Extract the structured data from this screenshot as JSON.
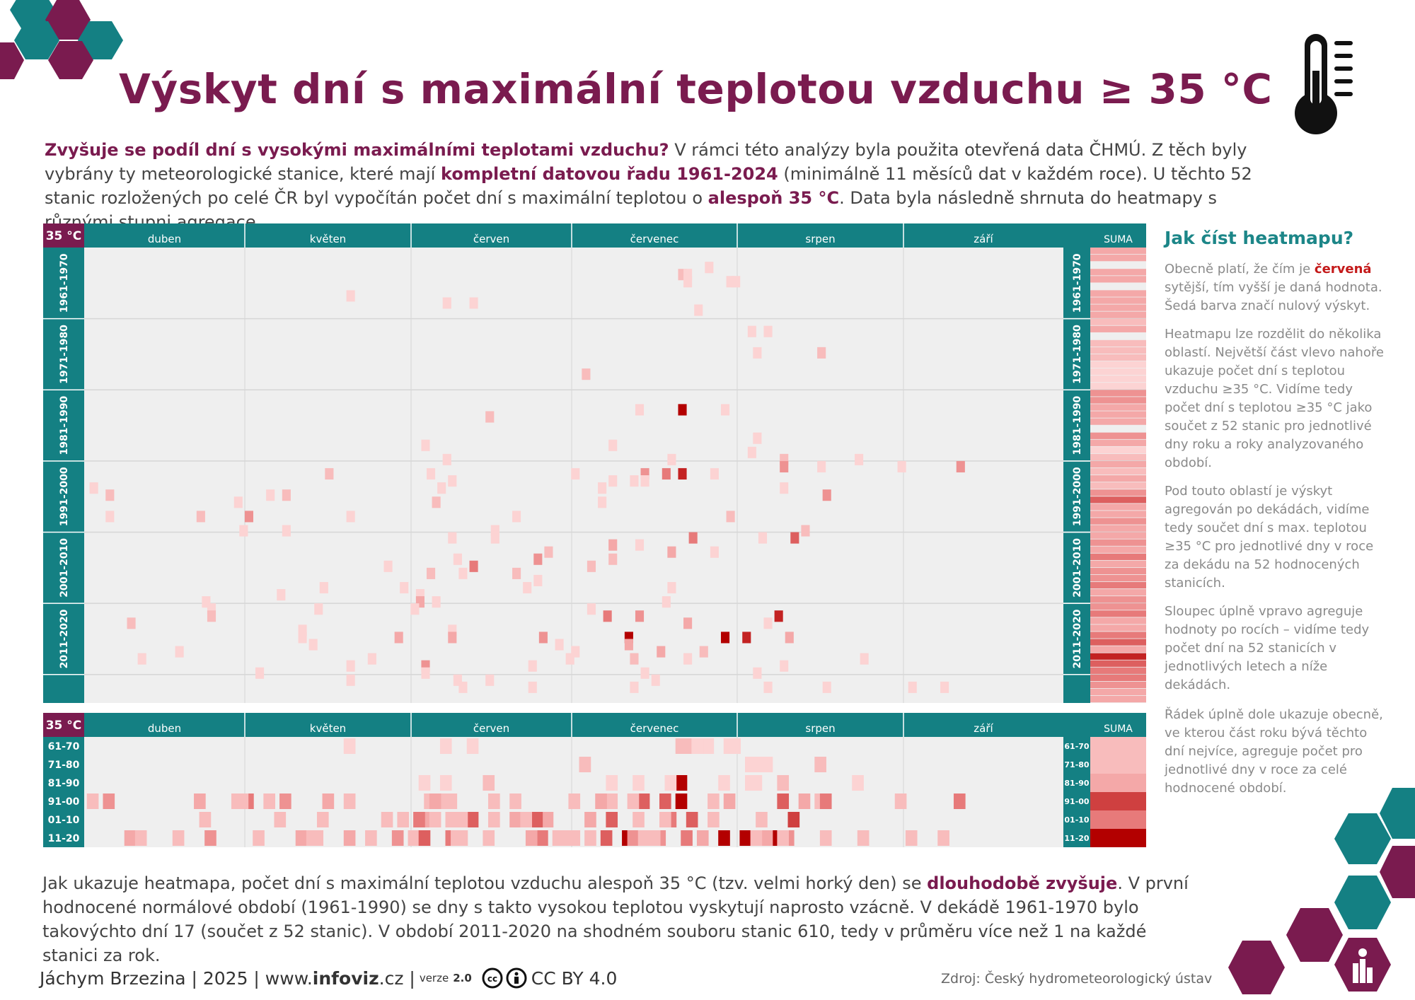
{
  "title": "Výskyt dní s maximální teplotou vzduchu ≥ 35 °C",
  "intro": {
    "q": "Zvyšuje se podíl dní s vysokými maximálními teplotami vzduchu?",
    "t1": " V rámci této analýzy byla použita otevřená data ČHMÚ. Z těch byly vybrány ty meteorologické stanice, které mají ",
    "h1": "kompletní datovou řadu 1961-2024",
    "t2": " (minimálně 11 měsíců dat v každém roce). U těchto 52 stanic rozložených po celé ČR byl vypočítán počet dní s maximální teplotou o ",
    "h2": "alespoň 35 °C",
    "t3": ". Data byla následně shrnuta do heatmapy s různými stupni agregace."
  },
  "side": {
    "title": "Jak číst heatmapu?",
    "p1a": "Obecně platí, že čím je ",
    "p1b": "červená",
    "p1c": " sytější, tím vyšší je daná hodnota. Šedá barva značí nulový výskyt.",
    "p2": "Heatmapu lze rozdělit do několika oblastí. Největší část vlevo nahoře ukazuje počet dní s teplotou vzduchu ≥35 °C. Vidíme tedy počet dní s teplotou ≥35 °C jako součet z 52 stanic pro jednotlivé dny roku a roky analyzovaného období.",
    "p3": "Pod touto oblastí je výskyt agregován po dekádách, vidíme tedy součet dní s max. teplotou ≥35 °C pro jednotlivé dny v roce za dekádu na 52 hodnocených stanicích.",
    "p4": "Sloupec úplně vpravo agreguje hodnoty po rocích – vidíme tedy počet dní na 52 stanicích v jednotlivých letech a níže dekádách.",
    "p5": "Řádek úplně dole ukazuje obecně, ve kterou část roku bývá těchto dní nejvíce, agreguje počet pro jednotlivé dny v roce za celé hodnocené období."
  },
  "outro": {
    "t1": "Jak ukazuje heatmapa, počet dní s maximální teplotou vzduchu alespoň 35 °C (tzv. velmi horký den) se ",
    "h1": "dlouhodobě zvyšuje",
    "t2": ". V první hodnocené normálové období (1961-1990) se dny s takto vysokou teplotou vyskytují naprosto vzácně. V dekádě 1961-1970 bylo takovýchto dní 17 (součet z 52 stanic). V období 2011-2020 na shodném souboru stanic 610, tedy v průměru více než 1 na každé stanici za rok."
  },
  "footer": {
    "author": "Jáchym Brzezina | 2025 | www.",
    "site_bold": "infoviz",
    "site_tail": ".cz |",
    "version_label": "verze",
    "version": "2.0",
    "license": "CC BY 4.0",
    "source": "Zdroj: Český hydrometeorologický ústav"
  },
  "colors": {
    "brand_purple": "#7a1b4f",
    "teal": "#148083",
    "cell_empty": "#efefef",
    "heat_light": "#f8c4c4",
    "heat_dark": "#b30000"
  },
  "chart_data": {
    "type": "heatmap",
    "corner_label": "35 °C",
    "months": [
      "duben",
      "květen",
      "červen",
      "červenec",
      "srpen",
      "září"
    ],
    "sum_label": "SUMA",
    "decade_labels": [
      "1961-1970",
      "1971-1980",
      "1981-1990",
      "1991-2000",
      "2001-2010",
      "2011-2020"
    ],
    "decade_short": [
      "61-70",
      "71-80",
      "81-90",
      "91-00",
      "01-10",
      "11-20"
    ],
    "decade_totals": {
      "1961-1970": 17,
      "2011-2020": 610
    },
    "stations": 52,
    "years": [
      1961,
      2024
    ],
    "days": [
      {
        "yr": 1963,
        "d": 116
      },
      {
        "yr": 1964,
        "d": 111
      },
      {
        "yr": 1964,
        "d": 112
      },
      {
        "yr": 1965,
        "d": 120
      },
      {
        "yr": 1965,
        "d": 121
      },
      {
        "yr": 1965,
        "d": 112
      },
      {
        "yr": 1967,
        "d": 49
      },
      {
        "yr": 1968,
        "d": 67
      },
      {
        "yr": 1968,
        "d": 72
      },
      {
        "yr": 1969,
        "d": 114
      },
      {
        "yr": 1972,
        "d": 124
      },
      {
        "yr": 1972,
        "d": 127
      },
      {
        "yr": 1975,
        "d": 125
      },
      {
        "yr": 1975,
        "d": 137
      },
      {
        "yr": 1978,
        "d": 93
      },
      {
        "yr": 1983,
        "d": 111
      },
      {
        "yr": 1983,
        "d": 103
      },
      {
        "yr": 1983,
        "d": 119
      },
      {
        "yr": 1984,
        "d": 75
      },
      {
        "yr": 1987,
        "d": 125
      },
      {
        "yr": 1988,
        "d": 63
      },
      {
        "yr": 1988,
        "d": 98
      },
      {
        "yr": 1989,
        "d": 124
      },
      {
        "yr": 1990,
        "d": 67
      },
      {
        "yr": 1990,
        "d": 109
      },
      {
        "yr": 1990,
        "d": 130
      },
      {
        "yr": 1990,
        "d": 144
      },
      {
        "yr": 1991,
        "d": 130
      },
      {
        "yr": 1991,
        "d": 137
      },
      {
        "yr": 1991,
        "d": 152
      },
      {
        "yr": 1991,
        "d": 163
      },
      {
        "yr": 1992,
        "d": 45
      },
      {
        "yr": 1992,
        "d": 64
      },
      {
        "yr": 1992,
        "d": 91
      },
      {
        "yr": 1992,
        "d": 104
      },
      {
        "yr": 1992,
        "d": 108
      },
      {
        "yr": 1992,
        "d": 111
      },
      {
        "yr": 1992,
        "d": 117
      },
      {
        "yr": 1993,
        "d": 68
      },
      {
        "yr": 1993,
        "d": 98
      },
      {
        "yr": 1993,
        "d": 102
      },
      {
        "yr": 1993,
        "d": 104
      },
      {
        "yr": 1994,
        "d": 1
      },
      {
        "yr": 1994,
        "d": 66
      },
      {
        "yr": 1994,
        "d": 96
      },
      {
        "yr": 1994,
        "d": 130
      },
      {
        "yr": 1995,
        "d": 4
      },
      {
        "yr": 1995,
        "d": 34
      },
      {
        "yr": 1995,
        "d": 37
      },
      {
        "yr": 1995,
        "d": 138
      },
      {
        "yr": 1996,
        "d": 28
      },
      {
        "yr": 1996,
        "d": 65
      },
      {
        "yr": 1996,
        "d": 96
      },
      {
        "yr": 1998,
        "d": 4
      },
      {
        "yr": 1998,
        "d": 21
      },
      {
        "yr": 1998,
        "d": 30
      },
      {
        "yr": 1998,
        "d": 49
      },
      {
        "yr": 1998,
        "d": 80
      },
      {
        "yr": 1998,
        "d": 120
      },
      {
        "yr": 2000,
        "d": 29
      },
      {
        "yr": 2000,
        "d": 37
      },
      {
        "yr": 2000,
        "d": 76
      },
      {
        "yr": 2000,
        "d": 134
      },
      {
        "yr": 2001,
        "d": 68
      },
      {
        "yr": 2001,
        "d": 76
      },
      {
        "yr": 2001,
        "d": 113
      },
      {
        "yr": 2001,
        "d": 126
      },
      {
        "yr": 2001,
        "d": 132
      },
      {
        "yr": 2002,
        "d": 98
      },
      {
        "yr": 2002,
        "d": 103
      },
      {
        "yr": 2003,
        "d": 86
      },
      {
        "yr": 2003,
        "d": 109
      },
      {
        "yr": 2003,
        "d": 117
      },
      {
        "yr": 2004,
        "d": 69
      },
      {
        "yr": 2004,
        "d": 84
      },
      {
        "yr": 2004,
        "d": 98
      },
      {
        "yr": 2005,
        "d": 56
      },
      {
        "yr": 2005,
        "d": 72
      },
      {
        "yr": 2005,
        "d": 94
      },
      {
        "yr": 2006,
        "d": 64
      },
      {
        "yr": 2006,
        "d": 70
      },
      {
        "yr": 2006,
        "d": 80
      },
      {
        "yr": 2007,
        "d": 84
      },
      {
        "yr": 2008,
        "d": 44
      },
      {
        "yr": 2008,
        "d": 59
      },
      {
        "yr": 2008,
        "d": 82
      },
      {
        "yr": 2008,
        "d": 109
      },
      {
        "yr": 2009,
        "d": 36
      },
      {
        "yr": 2009,
        "d": 62
      },
      {
        "yr": 2010,
        "d": 22
      },
      {
        "yr": 2010,
        "d": 62
      },
      {
        "yr": 2010,
        "d": 65
      },
      {
        "yr": 2010,
        "d": 108
      },
      {
        "yr": 2011,
        "d": 23
      },
      {
        "yr": 2011,
        "d": 43
      },
      {
        "yr": 2011,
        "d": 61
      },
      {
        "yr": 2011,
        "d": 94
      },
      {
        "yr": 2012,
        "d": 23
      },
      {
        "yr": 2012,
        "d": 97
      },
      {
        "yr": 2012,
        "d": 103
      },
      {
        "yr": 2012,
        "d": 129
      },
      {
        "yr": 2013,
        "d": 8
      },
      {
        "yr": 2013,
        "d": 112
      },
      {
        "yr": 2013,
        "d": 127
      },
      {
        "yr": 2014,
        "d": 40
      },
      {
        "yr": 2014,
        "d": 68
      },
      {
        "yr": 2015,
        "d": 40
      },
      {
        "yr": 2015,
        "d": 58
      },
      {
        "yr": 2015,
        "d": 68
      },
      {
        "yr": 2015,
        "d": 85
      },
      {
        "yr": 2015,
        "d": 101
      },
      {
        "yr": 2015,
        "d": 119
      },
      {
        "yr": 2015,
        "d": 123
      },
      {
        "yr": 2015,
        "d": 131
      },
      {
        "yr": 2016,
        "d": 42
      },
      {
        "yr": 2016,
        "d": 88
      },
      {
        "yr": 2016,
        "d": 101
      },
      {
        "yr": 2017,
        "d": 17
      },
      {
        "yr": 2017,
        "d": 91
      },
      {
        "yr": 2017,
        "d": 107
      },
      {
        "yr": 2017,
        "d": 115
      },
      {
        "yr": 2018,
        "d": 10
      },
      {
        "yr": 2018,
        "d": 53
      },
      {
        "yr": 2018,
        "d": 90
      },
      {
        "yr": 2018,
        "d": 102
      },
      {
        "yr": 2018,
        "d": 112
      },
      {
        "yr": 2018,
        "d": 145
      },
      {
        "yr": 2019,
        "d": 49
      },
      {
        "yr": 2019,
        "d": 63
      },
      {
        "yr": 2019,
        "d": 83
      },
      {
        "yr": 2019,
        "d": 130
      },
      {
        "yr": 2020,
        "d": 32
      },
      {
        "yr": 2020,
        "d": 63
      },
      {
        "yr": 2020,
        "d": 104
      },
      {
        "yr": 2020,
        "d": 125
      },
      {
        "yr": 2021,
        "d": 49
      },
      {
        "yr": 2021,
        "d": 69
      },
      {
        "yr": 2021,
        "d": 75
      },
      {
        "yr": 2021,
        "d": 106
      },
      {
        "yr": 2022,
        "d": 70
      },
      {
        "yr": 2022,
        "d": 83
      },
      {
        "yr": 2022,
        "d": 102
      },
      {
        "yr": 2022,
        "d": 127
      },
      {
        "yr": 2022,
        "d": 138
      },
      {
        "yr": 2022,
        "d": 154
      },
      {
        "yr": 2022,
        "d": 160
      }
    ],
    "day_values": [
      [
        1963,
        116,
        1
      ],
      [
        1964,
        111,
        2
      ],
      [
        1964,
        112,
        1
      ],
      [
        1965,
        120,
        1
      ],
      [
        1965,
        121,
        1
      ],
      [
        1965,
        112,
        1
      ],
      [
        1967,
        49,
        1
      ],
      [
        1968,
        67,
        1
      ],
      [
        1968,
        72,
        1
      ],
      [
        1969,
        114,
        1
      ],
      [
        1972,
        124,
        1
      ],
      [
        1972,
        127,
        1
      ],
      [
        1975,
        125,
        1
      ],
      [
        1975,
        137,
        2
      ],
      [
        1978,
        93,
        2
      ],
      [
        1983,
        111,
        9
      ],
      [
        1983,
        103,
        1
      ],
      [
        1983,
        119,
        1
      ],
      [
        1984,
        75,
        2
      ],
      [
        1987,
        125,
        1
      ],
      [
        1988,
        63,
        1
      ],
      [
        1988,
        98,
        1
      ],
      [
        1989,
        124,
        1
      ],
      [
        1990,
        67,
        1
      ],
      [
        1990,
        109,
        1
      ],
      [
        1990,
        130,
        2
      ],
      [
        1990,
        144,
        1
      ],
      [
        1991,
        130,
        4
      ],
      [
        1991,
        137,
        1
      ],
      [
        1991,
        152,
        1
      ],
      [
        1991,
        163,
        4
      ],
      [
        1992,
        45,
        2
      ],
      [
        1992,
        64,
        1
      ],
      [
        1992,
        91,
        1
      ],
      [
        1992,
        104,
        4
      ],
      [
        1992,
        108,
        5
      ],
      [
        1992,
        111,
        8
      ],
      [
        1992,
        117,
        1
      ],
      [
        1993,
        68,
        1
      ],
      [
        1993,
        98,
        1
      ],
      [
        1993,
        102,
        1
      ],
      [
        1993,
        104,
        1
      ],
      [
        1994,
        1,
        1
      ],
      [
        1994,
        66,
        1
      ],
      [
        1994,
        96,
        1
      ],
      [
        1994,
        130,
        1
      ],
      [
        1995,
        4,
        2
      ],
      [
        1995,
        34,
        1
      ],
      [
        1995,
        37,
        2
      ],
      [
        1995,
        138,
        4
      ],
      [
        1996,
        28,
        1
      ],
      [
        1996,
        65,
        2
      ],
      [
        1996,
        96,
        1
      ],
      [
        1998,
        4,
        1
      ],
      [
        1998,
        21,
        2
      ],
      [
        1998,
        30,
        4
      ],
      [
        1998,
        49,
        1
      ],
      [
        1998,
        80,
        1
      ],
      [
        1998,
        120,
        2
      ],
      [
        2000,
        29,
        1
      ],
      [
        2000,
        37,
        1
      ],
      [
        2000,
        76,
        1
      ],
      [
        2000,
        134,
        2
      ],
      [
        2001,
        68,
        1
      ],
      [
        2001,
        76,
        1
      ],
      [
        2001,
        113,
        5
      ],
      [
        2001,
        126,
        1
      ],
      [
        2001,
        132,
        6
      ],
      [
        2002,
        98,
        3
      ],
      [
        2002,
        103,
        1
      ],
      [
        2003,
        86,
        2
      ],
      [
        2003,
        109,
        3
      ],
      [
        2003,
        117,
        1
      ],
      [
        2004,
        69,
        1
      ],
      [
        2004,
        84,
        4
      ],
      [
        2004,
        98,
        2
      ],
      [
        2005,
        56,
        1
      ],
      [
        2005,
        72,
        5
      ],
      [
        2005,
        94,
        2
      ],
      [
        2006,
        64,
        2
      ],
      [
        2006,
        70,
        1
      ],
      [
        2006,
        80,
        2
      ],
      [
        2007,
        84,
        1
      ],
      [
        2008,
        44,
        1
      ],
      [
        2008,
        59,
        1
      ],
      [
        2008,
        82,
        1
      ],
      [
        2008,
        109,
        1
      ],
      [
        2009,
        36,
        1
      ],
      [
        2009,
        62,
        1
      ],
      [
        2010,
        22,
        1
      ],
      [
        2010,
        62,
        3
      ],
      [
        2010,
        65,
        1
      ],
      [
        2010,
        108,
        1
      ],
      [
        2011,
        23,
        1
      ],
      [
        2011,
        43,
        1
      ],
      [
        2011,
        61,
        1
      ],
      [
        2011,
        94,
        1
      ],
      [
        2012,
        23,
        2
      ],
      [
        2012,
        97,
        5
      ],
      [
        2012,
        103,
        4
      ],
      [
        2012,
        129,
        8
      ],
      [
        2013,
        8,
        2
      ],
      [
        2013,
        112,
        3
      ],
      [
        2013,
        127,
        1
      ],
      [
        2014,
        40,
        1
      ],
      [
        2014,
        68,
        1
      ],
      [
        2015,
        40,
        1
      ],
      [
        2015,
        58,
        3
      ],
      [
        2015,
        68,
        3
      ],
      [
        2015,
        85,
        4
      ],
      [
        2015,
        101,
        9
      ],
      [
        2015,
        119,
        10
      ],
      [
        2015,
        123,
        8
      ],
      [
        2015,
        131,
        3
      ],
      [
        2016,
        42,
        1
      ],
      [
        2016,
        88,
        1
      ],
      [
        2016,
        101,
        3
      ],
      [
        2017,
        17,
        1
      ],
      [
        2017,
        91,
        1
      ],
      [
        2017,
        107,
        3
      ],
      [
        2017,
        115,
        2
      ],
      [
        2018,
        10,
        1
      ],
      [
        2018,
        53,
        1
      ],
      [
        2018,
        90,
        1
      ],
      [
        2018,
        102,
        2
      ],
      [
        2018,
        112,
        1
      ],
      [
        2018,
        145,
        1
      ],
      [
        2019,
        49,
        1
      ],
      [
        2019,
        63,
        4
      ],
      [
        2019,
        83,
        1
      ],
      [
        2019,
        130,
        1
      ],
      [
        2020,
        32,
        1
      ],
      [
        2020,
        63,
        1
      ],
      [
        2020,
        104,
        1
      ],
      [
        2020,
        125,
        1
      ],
      [
        2021,
        49,
        1
      ],
      [
        2021,
        69,
        1
      ],
      [
        2021,
        75,
        1
      ],
      [
        2021,
        106,
        1
      ],
      [
        2022,
        70,
        1
      ],
      [
        2022,
        83,
        1
      ],
      [
        2022,
        102,
        1
      ],
      [
        2022,
        127,
        1
      ],
      [
        2022,
        138,
        1
      ],
      [
        2022,
        154,
        1
      ],
      [
        2022,
        160,
        1
      ]
    ],
    "year_sum_levels": [
      3,
      3,
      0,
      3,
      3,
      0,
      3,
      3,
      3,
      3,
      2,
      3,
      0,
      2,
      2,
      2,
      1,
      1,
      1,
      1,
      4,
      4,
      3,
      3,
      3,
      0,
      4,
      3,
      1,
      2,
      3,
      2,
      3,
      2,
      4,
      6,
      3,
      3,
      4,
      3,
      3,
      4,
      3,
      5,
      3,
      4,
      4,
      5,
      3,
      4,
      4,
      5,
      3,
      3,
      5,
      6,
      3,
      8,
      6,
      5,
      5,
      4,
      3,
      3
    ],
    "day_scale_note": "cell value = sum of days over 52 stations"
  }
}
